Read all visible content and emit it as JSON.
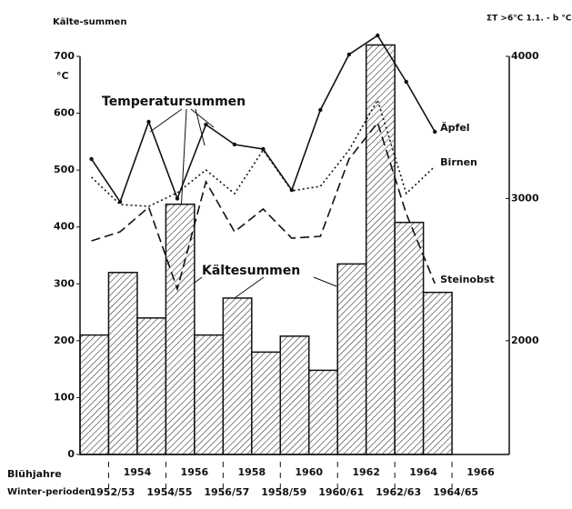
{
  "chart_data": {
    "type": "histogram",
    "y_label": "Kälte-summen",
    "y_unit": "°C",
    "y2_label": "ΣT >6°C 1.1. - b °C · h",
    "annotations": [
      "Temperatursummen",
      "Kältesummen"
    ],
    "x_label": "Blühjahre",
    "x2_label": "Winter-perioden",
    "bins": [
      1952,
      1953,
      1954,
      1955,
      1956,
      1957,
      1958,
      1959,
      1960,
      1961,
      1962,
      1963,
      1964,
      1965
    ],
    "values": [
      210,
      320,
      240,
      440,
      210,
      275,
      180,
      208,
      148,
      335,
      720,
      408,
      285
    ],
    "xlim": [
      1952,
      1967
    ],
    "xticks": [
      1954,
      1956,
      1958,
      1960,
      1962,
      1964,
      1966
    ],
    "x2ticks": [
      {
        "value": 1953,
        "label": "1952/53"
      },
      {
        "value": 1955,
        "label": "1954/55"
      },
      {
        "value": 1957,
        "label": "1956/57"
      },
      {
        "value": 1959,
        "label": "1958/59"
      },
      {
        "value": 1961,
        "label": "1960/61"
      },
      {
        "value": 1963,
        "label": "1962/63"
      },
      {
        "value": 1965,
        "label": "1964/65"
      }
    ],
    "ylim": [
      0,
      700
    ],
    "yticks": [
      0,
      100,
      200,
      300,
      400,
      500,
      600,
      700
    ],
    "y2lim": [
      1200,
      4000
    ],
    "y2ticks": [
      2000,
      3000,
      4000
    ],
    "x": [
      1952.4,
      1953.4,
      1954.4,
      1955.4,
      1956.4,
      1957.4,
      1958.4,
      1959.4,
      1960.4,
      1961.4,
      1962.4,
      1963.4,
      1964.4
    ],
    "series": [
      {
        "name": "Äpfel",
        "axis": "y2",
        "style": "solid",
        "color": "#111",
        "values": [
          3278,
          2977,
          3540,
          3000,
          3520,
          3380,
          3348,
          3060,
          3623,
          4013,
          4147,
          3821,
          3470
        ]
      },
      {
        "name": "Birnen",
        "axis": "y2",
        "style": "dotted",
        "color": "#111",
        "values": [
          3150,
          2958,
          2945,
          3041,
          3201,
          3035,
          3341,
          3054,
          3086,
          3341,
          3693,
          3035,
          3226
        ]
      },
      {
        "name": "Steinobst",
        "axis": "y2",
        "style": "dashed",
        "color": "#111",
        "values": [
          2702,
          2766,
          2939,
          2363,
          3118,
          2766,
          2926,
          2721,
          2734,
          3278,
          3533,
          2894,
          2402
        ]
      }
    ],
    "color": "#111"
  }
}
